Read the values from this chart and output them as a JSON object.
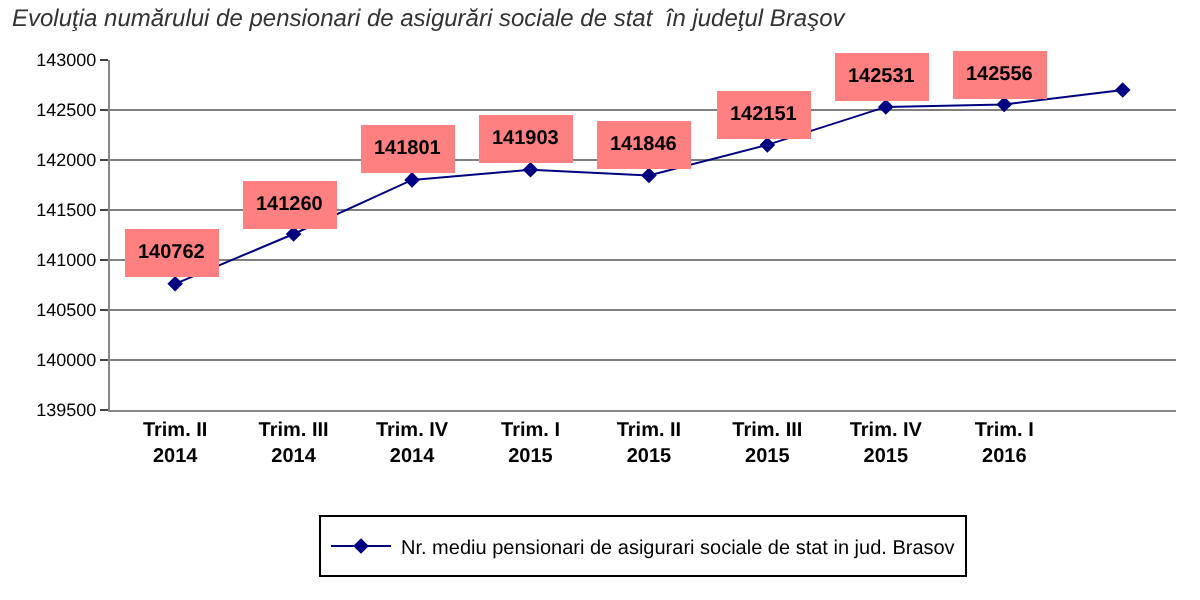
{
  "chart_data": {
    "type": "line",
    "title": "Evoluţia numărului de pensionari de asigurări sociale de stat  în judeţul Braşov",
    "categories": [
      "Trim. II 2014",
      "Trim. III 2014",
      "Trim. IV 2014",
      "Trim. I 2015",
      "Trim. II 2015",
      "Trim. III 2015",
      "Trim. IV 2015",
      "Trim. I 2016",
      null
    ],
    "series": [
      {
        "name": "Nr. mediu pensionari de asigurari sociale de stat in jud. Brasov",
        "color": "#000080",
        "values": [
          140762,
          141260,
          141801,
          141903,
          141846,
          142151,
          142531,
          142556,
          142700
        ],
        "value_labels": [
          "140762",
          "141260",
          "141801",
          "141903",
          "141846",
          "142151",
          "142531",
          "142556",
          null
        ]
      }
    ],
    "ylim": [
      139500,
      143000
    ],
    "yticks": [
      139500,
      140000,
      140500,
      141000,
      141500,
      142000,
      142500,
      143000
    ],
    "grid": "y",
    "legend": "bottom",
    "marker": "diamond",
    "line_style": "solid"
  }
}
